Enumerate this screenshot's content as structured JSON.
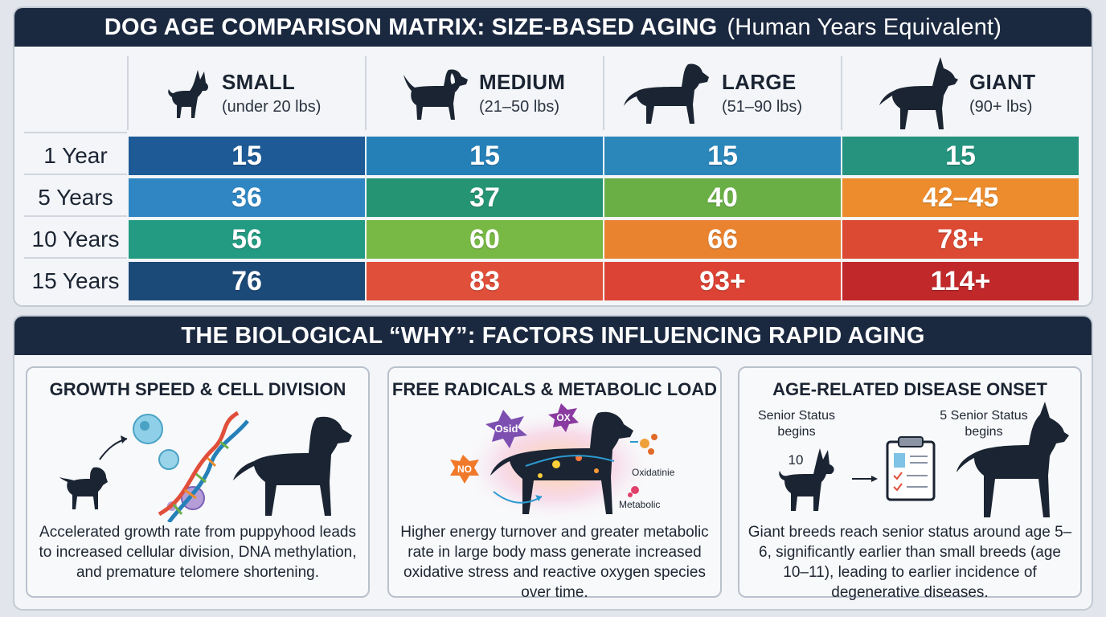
{
  "header": {
    "title_bold": "DOG AGE COMPARISON MATRIX: SIZE-BASED AGING",
    "title_light": "(Human Years Equivalent)"
  },
  "columns": [
    {
      "name": "SMALL",
      "range": "(under 20 lbs)",
      "icon": "small-dog-icon"
    },
    {
      "name": "MEDIUM",
      "range": "(21–50 lbs)",
      "icon": "medium-dog-icon"
    },
    {
      "name": "LARGE",
      "range": "(51–90 lbs)",
      "icon": "large-dog-icon"
    },
    {
      "name": "GIANT",
      "range": "(90+ lbs)",
      "icon": "giant-dog-icon"
    }
  ],
  "rows": [
    {
      "label": "1 Year",
      "values": [
        "15",
        "15",
        "15",
        "15"
      ],
      "colors": [
        "#1d5a96",
        "#2680b8",
        "#2b86ba",
        "#25937e"
      ]
    },
    {
      "label": "5 Years",
      "values": [
        "36",
        "37",
        "40",
        "42–45"
      ],
      "colors": [
        "#2f86c2",
        "#249472",
        "#6aaf46",
        "#ec8c2c"
      ]
    },
    {
      "label": "10 Years",
      "values": [
        "56",
        "60",
        "66",
        "78+"
      ],
      "colors": [
        "#239a82",
        "#78b844",
        "#e98330",
        "#dc4a34"
      ]
    },
    {
      "label": "15 Years",
      "values": [
        "76",
        "83",
        "93+",
        "114+"
      ],
      "colors": [
        "#1c4a78",
        "#e04f3a",
        "#dc4334",
        "#c1282a"
      ]
    }
  ],
  "section": {
    "title": "THE BIOLOGICAL “WHY”: FACTORS INFLUENCING RAPID AGING"
  },
  "cards": [
    {
      "title": "GROWTH SPEED & CELL DIVISION",
      "description": "Accelerated growth rate from puppyhood leads to increased cellular division, DNA methylation, and premature telomere shortening."
    },
    {
      "title": "FREE RADICALS & METABOLIC LOAD",
      "description": "Higher energy turnover and greater metabolic rate in large body mass generate increased oxidative stress and reactive oxygen species over time.",
      "labels": {
        "osid": "Osid",
        "ox": "OX",
        "no": "NO",
        "oxidatinie": "Oxidatinie",
        "metabolic": "Metabolic"
      }
    },
    {
      "title": "AGE-RELATED DISEASE ONSET",
      "description": "Giant breeds reach senior status around age 5–6, significantly earlier than small breeds (age 10–11), leading to earlier incidence of degenerative diseases.",
      "left_note": "Senior Status begins",
      "left_age": "10",
      "right_note": "5 Senior Status begins"
    }
  ],
  "colors": {
    "banner": "#1b2940",
    "panel": "#f3f5f8",
    "text": "#1c2533"
  }
}
